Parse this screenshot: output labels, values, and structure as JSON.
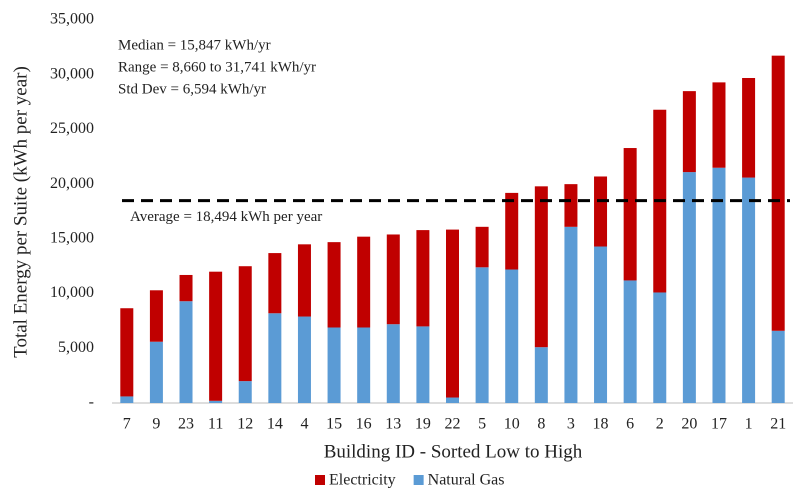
{
  "chart_data": {
    "type": "stacked_bar",
    "x_label": "Building ID - Sorted Low to High",
    "y_label": "Total Energy per Suite (kWh per year)",
    "categories": [
      "7",
      "9",
      "23",
      "11",
      "12",
      "14",
      "4",
      "15",
      "16",
      "13",
      "19",
      "22",
      "5",
      "10",
      "8",
      "3",
      "18",
      "6",
      "2",
      "20",
      "17",
      "1",
      "21"
    ],
    "series": [
      {
        "name": "Electricity",
        "color": "#c00000",
        "values": [
          8060,
          4700,
          2400,
          11800,
          10500,
          5500,
          6600,
          7800,
          8300,
          8200,
          8800,
          15347,
          3700,
          7000,
          14700,
          3900,
          6400,
          12100,
          16700,
          7400,
          7800,
          9100,
          25141
        ]
      },
      {
        "name": "Natural Gas",
        "color": "#5b9bd5",
        "values": [
          600,
          5600,
          9300,
          200,
          2000,
          8200,
          7900,
          6900,
          6900,
          7200,
          7000,
          500,
          12400,
          12200,
          5100,
          16100,
          14300,
          11200,
          10100,
          21100,
          21500,
          20600,
          6600
        ]
      }
    ],
    "ylim": [
      0,
      35000
    ],
    "yticks": [
      {
        "value": 0,
        "label": "-"
      },
      {
        "value": 5000,
        "label": "5,000"
      },
      {
        "value": 10000,
        "label": "10,000"
      },
      {
        "value": 15000,
        "label": "15,000"
      },
      {
        "value": 20000,
        "label": "20,000"
      },
      {
        "value": 25000,
        "label": "25,000"
      },
      {
        "value": 30000,
        "label": "30,000"
      },
      {
        "value": 35000,
        "label": "35,000"
      }
    ],
    "annotations": [
      "Median = 15,847  kWh/yr",
      "Range = 8,660  to 31,741  kWh/yr",
      "Std Dev = 6,594 kWh/yr"
    ],
    "average": 18494,
    "average_label": "Average = 18,494  kWh per year",
    "legend_position": "bottom"
  }
}
